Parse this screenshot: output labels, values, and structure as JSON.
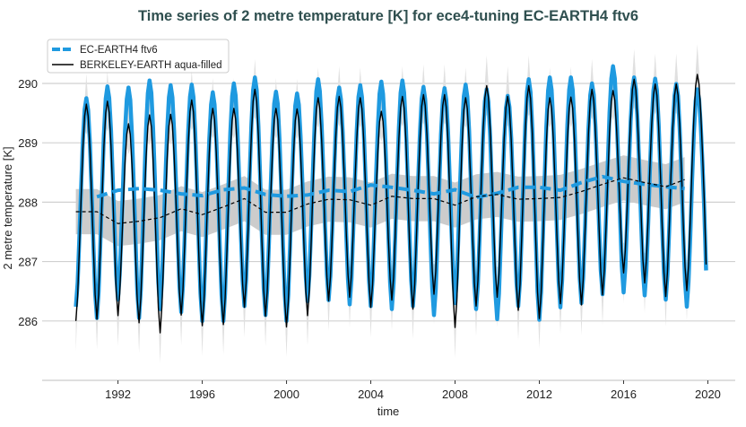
{
  "chart_data": {
    "type": "line",
    "title": "Time series of 2 metre temperature [K] for ece4-tuning EC-EARTH4 ftv6",
    "xlabel": "time",
    "ylabel": "2 metre temperature [K]",
    "xlim": [
      1988.4,
      2021.3
    ],
    "ylim": [
      285.0,
      290.8
    ],
    "x_ticks": [
      "1992",
      "1996",
      "2000",
      "2004",
      "2008",
      "2012",
      "2016",
      "2020"
    ],
    "y_ticks": [
      "286",
      "287",
      "288",
      "289",
      "290"
    ],
    "grid": "horizontal",
    "legend_position": "top-left",
    "years": [
      1990,
      1991,
      1992,
      1993,
      1994,
      1995,
      1996,
      1997,
      1998,
      1999,
      2000,
      2001,
      2002,
      2003,
      2004,
      2005,
      2006,
      2007,
      2008,
      2009,
      2010,
      2011,
      2012,
      2013,
      2014,
      2015,
      2016,
      2017,
      2018,
      2019
    ],
    "series": [
      {
        "name": "EC-EARTH4 ftv6",
        "color": "#1f9ae0",
        "style": "thick monthly line, dashed running annual mean",
        "annual_peak_jul": [
          289.75,
          289.95,
          289.93,
          290.05,
          289.97,
          289.98,
          289.85,
          290.0,
          290.1,
          289.86,
          289.83,
          290.07,
          289.93,
          289.97,
          290.03,
          290.05,
          289.94,
          289.92,
          289.98,
          289.9,
          289.79,
          290.07,
          290.1,
          290.1,
          290.0,
          290.29,
          290.1,
          290.08,
          289.99,
          289.9
        ],
        "annual_trough_jan": [
          286.24,
          286.05,
          286.36,
          286.05,
          286.2,
          286.15,
          286.0,
          286.0,
          286.25,
          286.1,
          286.0,
          286.33,
          286.35,
          286.28,
          286.25,
          286.2,
          286.25,
          286.1,
          286.3,
          286.2,
          286.03,
          286.25,
          286.02,
          286.23,
          286.3,
          286.45,
          286.48,
          286.43,
          286.36,
          286.24
        ],
        "end_value_dec_2019": 286.85,
        "running_mean": [
          null,
          288.09,
          288.2,
          288.23,
          288.2,
          288.14,
          288.11,
          288.21,
          288.24,
          288.13,
          288.1,
          288.12,
          288.2,
          288.18,
          288.29,
          288.25,
          288.2,
          288.14,
          288.21,
          288.08,
          288.15,
          288.25,
          288.25,
          288.2,
          288.33,
          288.43,
          288.35,
          288.3,
          288.26,
          288.23
        ]
      },
      {
        "name": "BERKELEY-EARTH aqua-filled",
        "color": "#000000",
        "style": "thin monthly line, dashed running annual mean, grey spread band",
        "annual_peak_jul": [
          289.65,
          289.7,
          289.32,
          289.47,
          289.48,
          289.72,
          289.58,
          289.58,
          289.9,
          289.58,
          289.57,
          289.76,
          289.78,
          289.76,
          289.53,
          289.78,
          289.81,
          289.81,
          289.76,
          289.96,
          289.78,
          289.96,
          289.76,
          289.77,
          289.9,
          289.88,
          290.07,
          289.99,
          289.99,
          290.15
        ],
        "annual_trough_jan": [
          286.0,
          286.03,
          286.09,
          285.97,
          285.8,
          286.1,
          285.92,
          285.94,
          286.23,
          286.08,
          285.9,
          286.09,
          286.34,
          286.4,
          286.23,
          286.35,
          286.2,
          286.45,
          285.89,
          286.25,
          286.4,
          286.18,
          286.04,
          286.29,
          286.27,
          286.44,
          286.81,
          286.64,
          286.41,
          286.51
        ],
        "end_value_dec_2019": 286.95,
        "running_mean": [
          287.84,
          287.84,
          287.64,
          287.68,
          287.74,
          287.89,
          287.79,
          287.92,
          288.06,
          287.83,
          287.83,
          287.97,
          288.05,
          288.04,
          287.95,
          288.1,
          288.06,
          288.06,
          287.95,
          288.09,
          288.13,
          288.05,
          288.06,
          288.08,
          288.18,
          288.3,
          288.41,
          288.33,
          288.26,
          288.38
        ],
        "band_halfwidth": 0.38,
        "band_color": "#cccccc",
        "spread_color": "#e0e0e0"
      }
    ]
  }
}
